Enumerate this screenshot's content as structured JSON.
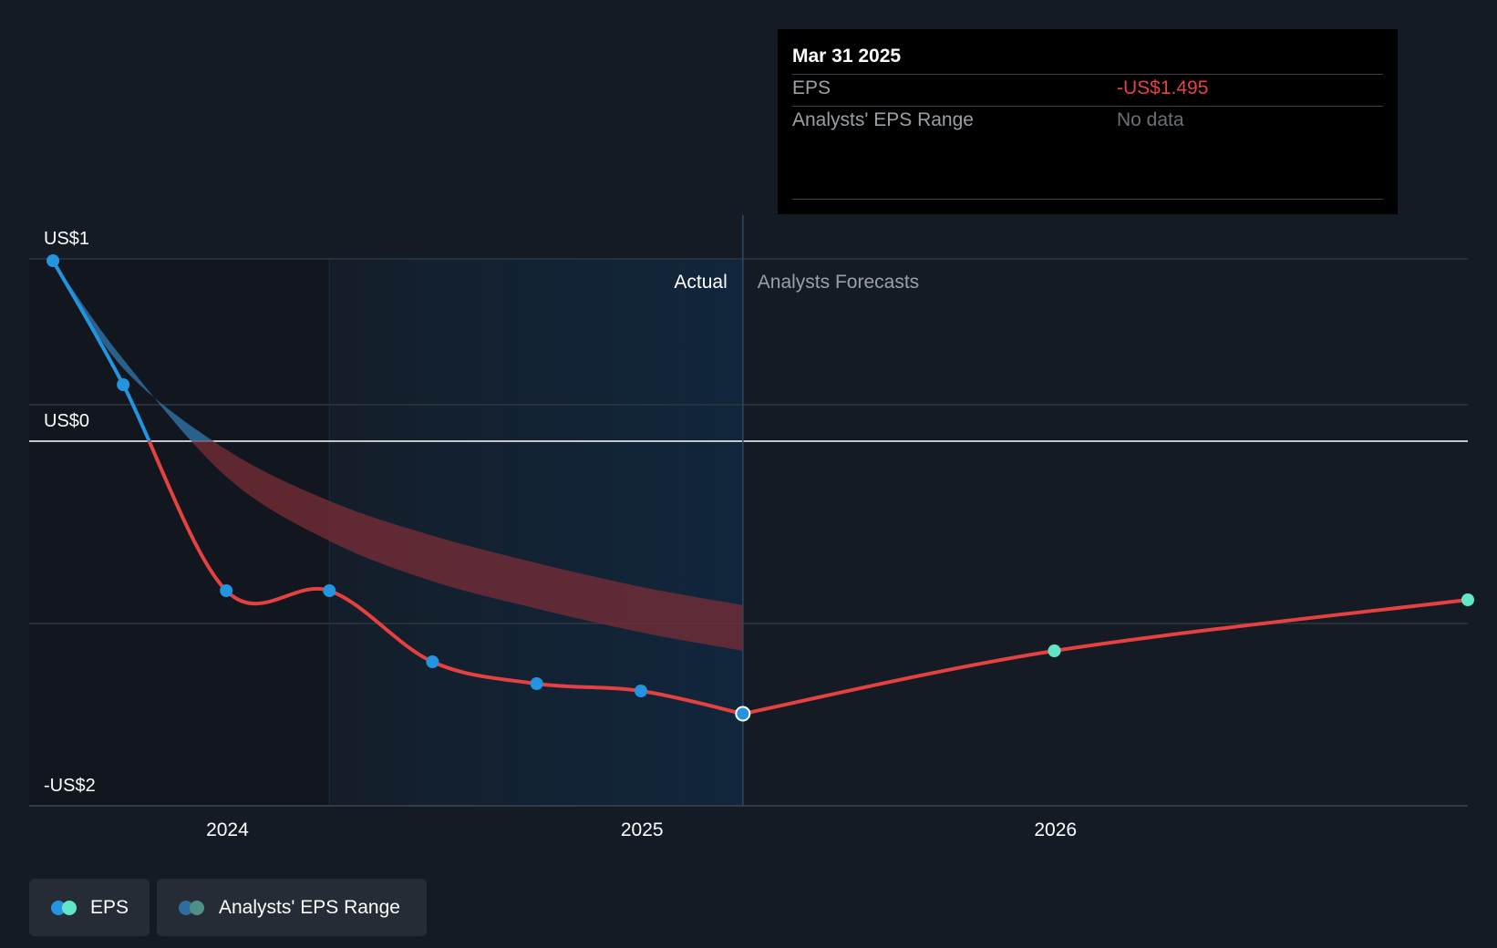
{
  "colors": {
    "background": "#151b24",
    "eps_positive": "#2394df",
    "eps_negative": "#e64141",
    "forecast_point": "#63e6c7",
    "range_positive": "#2f6d9e",
    "range_negative": "#7a2e37",
    "actual_shade": "#11263c",
    "gridline": "#2f3640",
    "zero_line": "#ffffff"
  },
  "tooltip": {
    "date": "Mar 31 2025",
    "rows": [
      {
        "label": "EPS",
        "value": "-US$1.495",
        "value_color": "#e64141"
      },
      {
        "label": "Analysts' EPS Range",
        "value": "No data",
        "value_color": "#6b7075"
      }
    ]
  },
  "chart_data": {
    "type": "line",
    "y_axis_labels": [
      "US$1",
      "US$0",
      "-US$2"
    ],
    "ylim": [
      -2.0,
      1.0
    ],
    "x_ticks": [
      {
        "label": "2024",
        "value": "2024-01-01"
      },
      {
        "label": "2025",
        "value": "2025-01-01"
      },
      {
        "label": "2026",
        "value": "2026-01-01"
      }
    ],
    "xlim": [
      "2023-07-10",
      "2026-12-31"
    ],
    "section_labels": {
      "actual": "Actual",
      "forecast": "Analysts Forecasts"
    },
    "actual_end": "2025-03-31",
    "past_shade_start": "2024-03-31",
    "series": [
      {
        "name": "EPS",
        "points": [
          {
            "x": "2023-07-31",
            "y": 0.99
          },
          {
            "x": "2023-10-01",
            "y": 0.31
          },
          {
            "x": "2023-12-31",
            "y": -0.82
          },
          {
            "x": "2024-03-31",
            "y": -0.82
          },
          {
            "x": "2024-06-30",
            "y": -1.21
          },
          {
            "x": "2024-09-30",
            "y": -1.33
          },
          {
            "x": "2024-12-31",
            "y": -1.37
          },
          {
            "x": "2025-03-31",
            "y": -1.495
          }
        ]
      },
      {
        "name": "EPS Forecast",
        "points": [
          {
            "x": "2025-03-31",
            "y": -1.495
          },
          {
            "x": "2025-12-31",
            "y": -1.15
          },
          {
            "x": "2026-12-31",
            "y": -0.87
          }
        ]
      },
      {
        "name": "Analysts' EPS Range",
        "upper": [
          {
            "x": "2023-07-31",
            "y": 0.99
          },
          {
            "x": "2023-10-01",
            "y": 0.4
          },
          {
            "x": "2024-01-01",
            "y": -0.05
          },
          {
            "x": "2024-04-01",
            "y": -0.33
          },
          {
            "x": "2024-07-01",
            "y": -0.52
          },
          {
            "x": "2024-10-01",
            "y": -0.67
          },
          {
            "x": "2025-01-01",
            "y": -0.8
          },
          {
            "x": "2025-03-31",
            "y": -0.9
          }
        ],
        "lower": [
          {
            "x": "2023-07-31",
            "y": 0.99
          },
          {
            "x": "2023-10-01",
            "y": 0.45
          },
          {
            "x": "2024-01-01",
            "y": -0.2
          },
          {
            "x": "2024-04-01",
            "y": -0.55
          },
          {
            "x": "2024-07-01",
            "y": -0.77
          },
          {
            "x": "2024-10-01",
            "y": -0.92
          },
          {
            "x": "2025-01-01",
            "y": -1.05
          },
          {
            "x": "2025-03-31",
            "y": -1.15
          }
        ]
      }
    ],
    "legend": [
      "EPS",
      "Analysts' EPS Range"
    ]
  }
}
